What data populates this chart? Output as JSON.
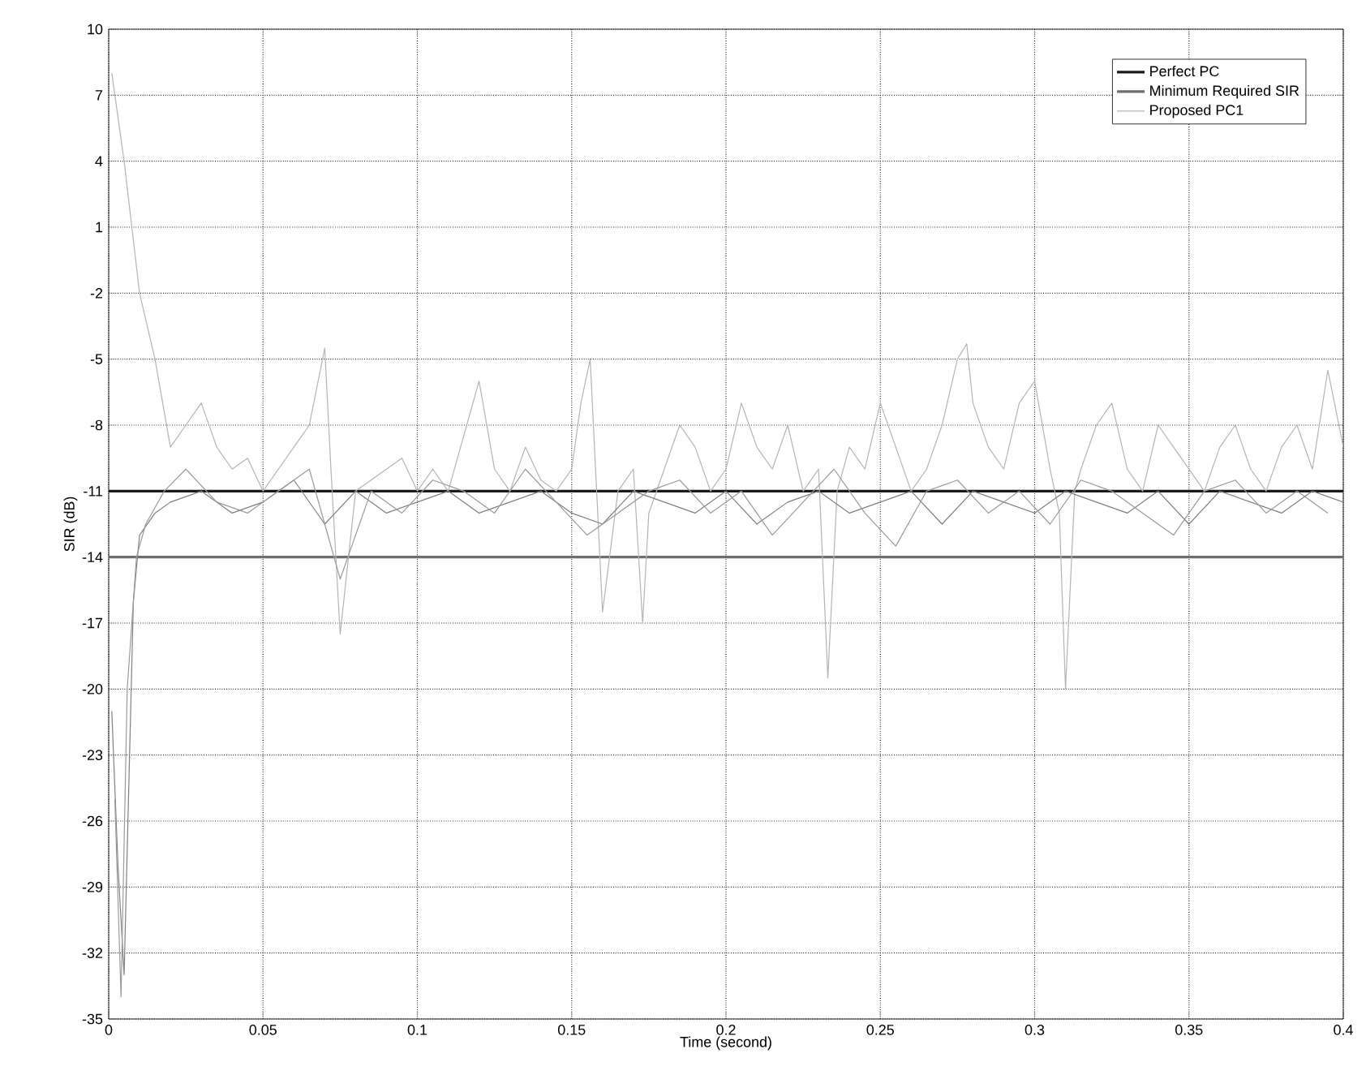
{
  "chart_data": {
    "type": "line",
    "xlabel": "Time (second)",
    "ylabel": "SIR (dB)",
    "xlim": [
      0,
      0.4
    ],
    "ylim": [
      -35,
      10
    ],
    "xticks": [
      0,
      0.05,
      0.1,
      0.15,
      0.2,
      0.25,
      0.3,
      0.35,
      0.4
    ],
    "yticks": [
      -35,
      -32,
      -29,
      -26,
      -23,
      -20,
      -17,
      -14,
      -11,
      -8,
      -5,
      -2,
      1,
      4,
      7,
      10
    ],
    "grid": true,
    "legend": "top right",
    "marker": "none",
    "line_style": "solid",
    "series": [
      {
        "name": "Perfect PC",
        "color": "#1a1a1a",
        "x": [
          0,
          0.4
        ],
        "values": [
          -11,
          -11
        ]
      },
      {
        "name": "Minimum Required SIR",
        "color": "#6e6e6e",
        "x": [
          0,
          0.4
        ],
        "values": [
          -14,
          -14
        ]
      },
      {
        "name": "Proposed PC1",
        "color": "#b4b4b4",
        "x": [
          0.001,
          0.005,
          0.01,
          0.015,
          0.02,
          0.025,
          0.03,
          0.035,
          0.04,
          0.045,
          0.05,
          0.055,
          0.06,
          0.065,
          0.07,
          0.072,
          0.075,
          0.08,
          0.085,
          0.09,
          0.095,
          0.1,
          0.105,
          0.11,
          0.115,
          0.12,
          0.125,
          0.13,
          0.135,
          0.14,
          0.145,
          0.15,
          0.153,
          0.156,
          0.16,
          0.165,
          0.17,
          0.173,
          0.175,
          0.18,
          0.185,
          0.19,
          0.195,
          0.2,
          0.205,
          0.21,
          0.215,
          0.22,
          0.225,
          0.23,
          0.233,
          0.236,
          0.24,
          0.245,
          0.25,
          0.255,
          0.26,
          0.265,
          0.27,
          0.275,
          0.278,
          0.28,
          0.285,
          0.29,
          0.295,
          0.3,
          0.305,
          0.308,
          0.31,
          0.313,
          0.315,
          0.32,
          0.325,
          0.33,
          0.335,
          0.34,
          0.345,
          0.35,
          0.355,
          0.36,
          0.365,
          0.37,
          0.375,
          0.38,
          0.385,
          0.39,
          0.395,
          0.4
        ],
        "values": [
          8,
          4,
          -2,
          -5,
          -9,
          -8,
          -7,
          -9,
          -10,
          -9.5,
          -11,
          -10,
          -9,
          -8,
          -4.5,
          -10,
          -17.5,
          -11,
          -10.5,
          -10,
          -9.5,
          -11,
          -10,
          -11,
          -8.5,
          -6,
          -10,
          -11,
          -9,
          -10.5,
          -11,
          -10,
          -7,
          -5,
          -16.5,
          -11,
          -10,
          -17,
          -12,
          -10,
          -8,
          -9,
          -11,
          -10,
          -7,
          -9,
          -10,
          -8,
          -11,
          -10,
          -19.5,
          -11,
          -9,
          -10,
          -7,
          -9,
          -11,
          -10,
          -8,
          -5,
          -4.3,
          -7,
          -9,
          -10,
          -7,
          -6,
          -10,
          -12,
          -20,
          -11,
          -10,
          -8,
          -7,
          -10,
          -11,
          -8,
          -9,
          -10,
          -11,
          -9,
          -8,
          -10,
          -11,
          -9,
          -8,
          -10,
          -5.5,
          -9
        ]
      },
      {
        "color": "#808080",
        "x": [
          0.001,
          0.003,
          0.005,
          0.008,
          0.01,
          0.015,
          0.02,
          0.03,
          0.04,
          0.05,
          0.06,
          0.07,
          0.08,
          0.09,
          0.1,
          0.11,
          0.12,
          0.13,
          0.14,
          0.15,
          0.16,
          0.17,
          0.18,
          0.19,
          0.2,
          0.21,
          0.22,
          0.23,
          0.24,
          0.25,
          0.26,
          0.27,
          0.28,
          0.29,
          0.3,
          0.31,
          0.32,
          0.33,
          0.34,
          0.35,
          0.36,
          0.37,
          0.38,
          0.39,
          0.4
        ],
        "values": [
          -21,
          -28,
          -33,
          -16,
          -13,
          -12,
          -11.5,
          -11,
          -12,
          -11.5,
          -10.5,
          -12.5,
          -11,
          -12,
          -11.5,
          -11,
          -12,
          -11.5,
          -11,
          -12,
          -12.5,
          -11,
          -11.5,
          -12,
          -11,
          -12.5,
          -11.5,
          -11,
          -12,
          -11.5,
          -11,
          -12.5,
          -11,
          -11.5,
          -12,
          -11,
          -11.5,
          -12,
          -11,
          -12.5,
          -11,
          -11.5,
          -12,
          -11,
          -11.5
        ]
      },
      {
        "color": "#9a9a9a",
        "x": [
          0.002,
          0.004,
          0.006,
          0.009,
          0.012,
          0.018,
          0.025,
          0.035,
          0.045,
          0.055,
          0.065,
          0.075,
          0.085,
          0.095,
          0.105,
          0.115,
          0.125,
          0.135,
          0.145,
          0.155,
          0.165,
          0.175,
          0.185,
          0.195,
          0.205,
          0.215,
          0.225,
          0.235,
          0.245,
          0.255,
          0.265,
          0.275,
          0.285,
          0.295,
          0.305,
          0.315,
          0.325,
          0.335,
          0.345,
          0.355,
          0.365,
          0.375,
          0.385,
          0.395
        ],
        "values": [
          -25,
          -34,
          -20,
          -14,
          -12.5,
          -11,
          -10,
          -11.5,
          -12,
          -11,
          -10,
          -15,
          -11,
          -12,
          -10.5,
          -11,
          -12,
          -10,
          -11.5,
          -13,
          -12,
          -11,
          -10.5,
          -12,
          -11,
          -13,
          -11.5,
          -10,
          -12,
          -13.5,
          -11,
          -10.5,
          -12,
          -11,
          -12.5,
          -10.5,
          -11,
          -12,
          -13,
          -11,
          -10.5,
          -12,
          -11,
          -12
        ]
      }
    ]
  }
}
